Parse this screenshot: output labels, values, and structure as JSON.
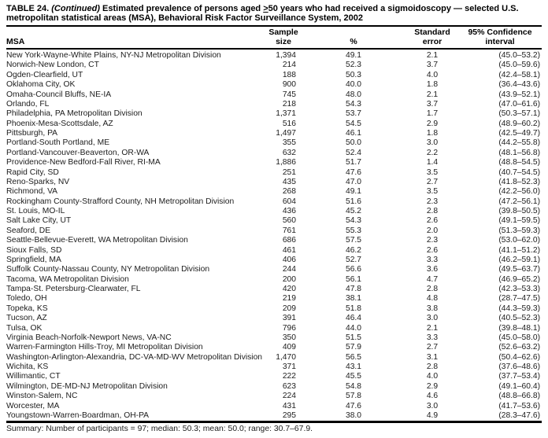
{
  "colors": {
    "text": "#000000",
    "background": "#ffffff",
    "rule": "#000000"
  },
  "title": {
    "prefix": "TABLE 24. ",
    "continued": "(Continued)",
    "after_continued": " Estimated prevalence of persons aged ",
    "geq": ">",
    "line1_rest": "50 years who had received a sigmoidoscopy — selected U.S.",
    "line2": "metropolitan statistical areas (MSA), Behavioral Risk Factor Surveillance System, 2002"
  },
  "table": {
    "headers": {
      "msa": "MSA",
      "sample": {
        "line1": "Sample",
        "line2": "size"
      },
      "percent": "%",
      "se": {
        "line1": "Standard",
        "line2": "error"
      },
      "ci": {
        "line1": "95% Confidence",
        "line2": "interval"
      }
    },
    "rows": [
      {
        "msa": "New York-Wayne-White Plains, NY-NJ Metropolitan Division",
        "n": "1,394",
        "pct": "49.1",
        "se": "2.1",
        "ci": "(45.0–53.2)"
      },
      {
        "msa": "Norwich-New London, CT",
        "n": "214",
        "pct": "52.3",
        "se": "3.7",
        "ci": "(45.0–59.6)"
      },
      {
        "msa": "Ogden-Clearfield, UT",
        "n": "188",
        "pct": "50.3",
        "se": "4.0",
        "ci": "(42.4–58.1)"
      },
      {
        "msa": "Oklahoma City, OK",
        "n": "900",
        "pct": "40.0",
        "se": "1.8",
        "ci": "(36.4–43.6)"
      },
      {
        "msa": "Omaha-Council Bluffs, NE-IA",
        "n": "745",
        "pct": "48.0",
        "se": "2.1",
        "ci": "(43.9–52.1)"
      },
      {
        "msa": "Orlando, FL",
        "n": "218",
        "pct": "54.3",
        "se": "3.7",
        "ci": "(47.0–61.6)"
      },
      {
        "msa": "Philadelphia, PA Metropolitan Division",
        "n": "1,371",
        "pct": "53.7",
        "se": "1.7",
        "ci": "(50.3–57.1)"
      },
      {
        "msa": "Phoenix-Mesa-Scottsdale, AZ",
        "n": "516",
        "pct": "54.5",
        "se": "2.9",
        "ci": "(48.9–60.2)"
      },
      {
        "msa": "Pittsburgh, PA",
        "n": "1,497",
        "pct": "46.1",
        "se": "1.8",
        "ci": "(42.5–49.7)"
      },
      {
        "msa": "Portland-South Portland, ME",
        "n": "355",
        "pct": "50.0",
        "se": "3.0",
        "ci": "(44.2–55.8)"
      },
      {
        "msa": "Portland-Vancouver-Beaverton, OR-WA",
        "n": "632",
        "pct": "52.4",
        "se": "2.2",
        "ci": "(48.1–56.8)"
      },
      {
        "msa": "Providence-New Bedford-Fall River, RI-MA",
        "n": "1,886",
        "pct": "51.7",
        "se": "1.4",
        "ci": "(48.8–54.5)"
      },
      {
        "msa": "Rapid City, SD",
        "n": "251",
        "pct": "47.6",
        "se": "3.5",
        "ci": "(40.7–54.5)"
      },
      {
        "msa": "Reno-Sparks, NV",
        "n": "435",
        "pct": "47.0",
        "se": "2.7",
        "ci": "(41.8–52.3)"
      },
      {
        "msa": "Richmond, VA",
        "n": "268",
        "pct": "49.1",
        "se": "3.5",
        "ci": "(42.2–56.0)"
      },
      {
        "msa": "Rockingham County-Strafford County, NH Metropolitan Division",
        "n": "604",
        "pct": "51.6",
        "se": "2.3",
        "ci": "(47.2–56.1)"
      },
      {
        "msa": "St. Louis, MO-IL",
        "n": "436",
        "pct": "45.2",
        "se": "2.8",
        "ci": "(39.8–50.5)"
      },
      {
        "msa": "Salt Lake City, UT",
        "n": "560",
        "pct": "54.3",
        "se": "2.6",
        "ci": "(49.1–59.5)"
      },
      {
        "msa": "Seaford, DE",
        "n": "761",
        "pct": "55.3",
        "se": "2.0",
        "ci": "(51.3–59.3)"
      },
      {
        "msa": "Seattle-Bellevue-Everett, WA Metropolitan Division",
        "n": "686",
        "pct": "57.5",
        "se": "2.3",
        "ci": "(53.0–62.0)"
      },
      {
        "msa": "Sioux Falls, SD",
        "n": "461",
        "pct": "46.2",
        "se": "2.6",
        "ci": "(41.1–51.2)"
      },
      {
        "msa": "Springfield, MA",
        "n": "406",
        "pct": "52.7",
        "se": "3.3",
        "ci": "(46.2–59.1)"
      },
      {
        "msa": "Suffolk County-Nassau County, NY Metropolitan Division",
        "n": "244",
        "pct": "56.6",
        "se": "3.6",
        "ci": "(49.5–63.7)"
      },
      {
        "msa": "Tacoma, WA Metropolitan Division",
        "n": "200",
        "pct": "56.1",
        "se": "4.7",
        "ci": "(46.9–65.2)"
      },
      {
        "msa": "Tampa-St. Petersburg-Clearwater, FL",
        "n": "420",
        "pct": "47.8",
        "se": "2.8",
        "ci": "(42.3–53.3)"
      },
      {
        "msa": "Toledo, OH",
        "n": "219",
        "pct": "38.1",
        "se": "4.8",
        "ci": "(28.7–47.5)"
      },
      {
        "msa": "Topeka, KS",
        "n": "209",
        "pct": "51.8",
        "se": "3.8",
        "ci": "(44.3–59.3)"
      },
      {
        "msa": "Tucson, AZ",
        "n": "391",
        "pct": "46.4",
        "se": "3.0",
        "ci": "(40.5–52.3)"
      },
      {
        "msa": "Tulsa, OK",
        "n": "796",
        "pct": "44.0",
        "se": "2.1",
        "ci": "(39.8–48.1)"
      },
      {
        "msa": "Virginia Beach-Norfolk-Newport News, VA-NC",
        "n": "350",
        "pct": "51.5",
        "se": "3.3",
        "ci": "(45.0–58.0)"
      },
      {
        "msa": "Warren-Farmington Hills-Troy, MI Metropolitan Division",
        "n": "409",
        "pct": "57.9",
        "se": "2.7",
        "ci": "(52.6–63.2)"
      },
      {
        "msa": "Washington-Arlington-Alexandria, DC-VA-MD-WV Metropolitan Division",
        "n": "1,470",
        "pct": "56.5",
        "se": "3.1",
        "ci": "(50.4–62.6)"
      },
      {
        "msa": "Wichita, KS",
        "n": "371",
        "pct": "43.1",
        "se": "2.8",
        "ci": "(37.6–48.6)"
      },
      {
        "msa": "Willimantic, CT",
        "n": "222",
        "pct": "45.5",
        "se": "4.0",
        "ci": "(37.7–53.4)"
      },
      {
        "msa": "Wilmington, DE-MD-NJ Metropolitan Division",
        "n": "623",
        "pct": "54.8",
        "se": "2.9",
        "ci": "(49.1–60.4)"
      },
      {
        "msa": "Winston-Salem, NC",
        "n": "224",
        "pct": "57.8",
        "se": "4.6",
        "ci": "(48.8–66.8)"
      },
      {
        "msa": "Worcester, MA",
        "n": "431",
        "pct": "47.6",
        "se": "3.0",
        "ci": "(41.7–53.6)"
      },
      {
        "msa": "Youngstown-Warren-Boardman, OH-PA",
        "n": "295",
        "pct": "38.0",
        "se": "4.9",
        "ci": "(28.3–47.6)"
      }
    ]
  },
  "summary": {
    "text": "Summary: Number of participants = 97; median: 50.3; mean: 50.0; range: 30.7–67.9."
  }
}
